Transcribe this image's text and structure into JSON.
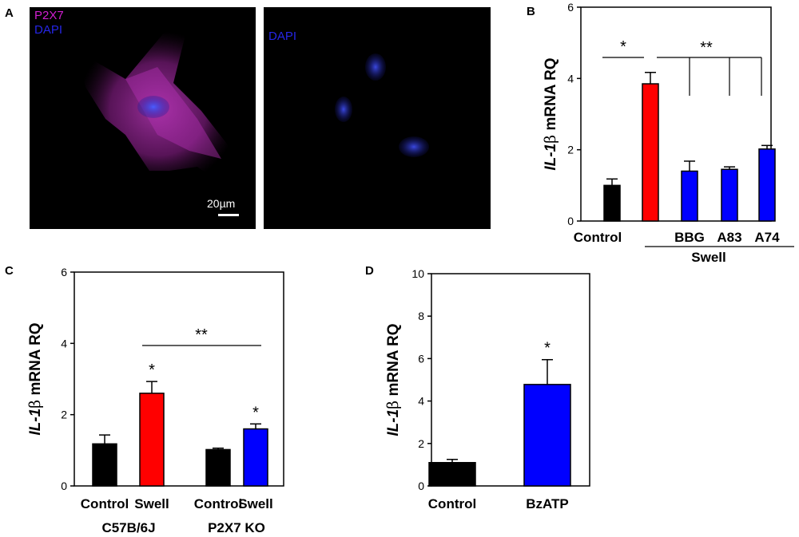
{
  "panel_letters": {
    "a": "A",
    "b": "B",
    "c": "C",
    "d": "D"
  },
  "micrographs": {
    "left": {
      "label_1": "P2X7",
      "label_2": "DAPI",
      "label_1_color": "#d21fd2",
      "label_2_color": "#2626e6",
      "scale_bar": "20µm"
    },
    "right": {
      "label_1": "DAPI",
      "label_1_color": "#2626e6"
    }
  },
  "colors": {
    "control": "#000000",
    "swell": "#ff0000",
    "treatment": "#0000ff"
  },
  "chart_data": [
    {
      "panel": "B",
      "type": "bar",
      "ylabel_italic": "IL-1",
      "ylabel_beta": "β",
      "ylabel_rest": " mRNA RQ",
      "ylim": [
        0,
        6
      ],
      "yticks": [
        0,
        2,
        4,
        6
      ],
      "categories": [
        "Control",
        "",
        "BBG",
        "A83",
        "A74"
      ],
      "values": [
        1.0,
        3.85,
        1.4,
        1.45,
        2.02
      ],
      "errors": [
        0.18,
        0.32,
        0.28,
        0.07,
        0.1
      ],
      "bar_colors": [
        "#000000",
        "#ff0000",
        "#0000ff",
        "#0000ff",
        "#0000ff"
      ],
      "group_label": "Swell",
      "sig_star_1": "*",
      "sig_star_2": "**"
    },
    {
      "panel": "C",
      "type": "bar",
      "ylabel_italic": "IL-1",
      "ylabel_beta": "β",
      "ylabel_rest": " mRNA RQ",
      "ylim": [
        0,
        6
      ],
      "yticks": [
        0,
        2,
        4,
        6
      ],
      "categories": [
        "Control",
        "Swell",
        "Control",
        "Swell"
      ],
      "values": [
        1.18,
        2.6,
        1.02,
        1.6
      ],
      "errors": [
        0.25,
        0.33,
        0.04,
        0.14
      ],
      "bar_colors": [
        "#000000",
        "#ff0000",
        "#000000",
        "#0000ff"
      ],
      "groups": [
        "C57B/6J",
        "P2X7 KO"
      ],
      "bar_stars": [
        "",
        "*",
        "",
        "*"
      ],
      "sig_bracket": "**"
    },
    {
      "panel": "D",
      "type": "bar",
      "ylabel_italic": "IL-1",
      "ylabel_beta": "β",
      "ylabel_rest": " mRNA RQ",
      "ylim": [
        0,
        10
      ],
      "yticks": [
        0,
        2,
        4,
        6,
        8,
        10
      ],
      "categories": [
        "Control",
        "BzATP"
      ],
      "values": [
        1.1,
        4.78
      ],
      "errors": [
        0.15,
        1.17
      ],
      "bar_colors": [
        "#000000",
        "#0000ff"
      ],
      "bar_stars": [
        "",
        "*"
      ]
    }
  ]
}
